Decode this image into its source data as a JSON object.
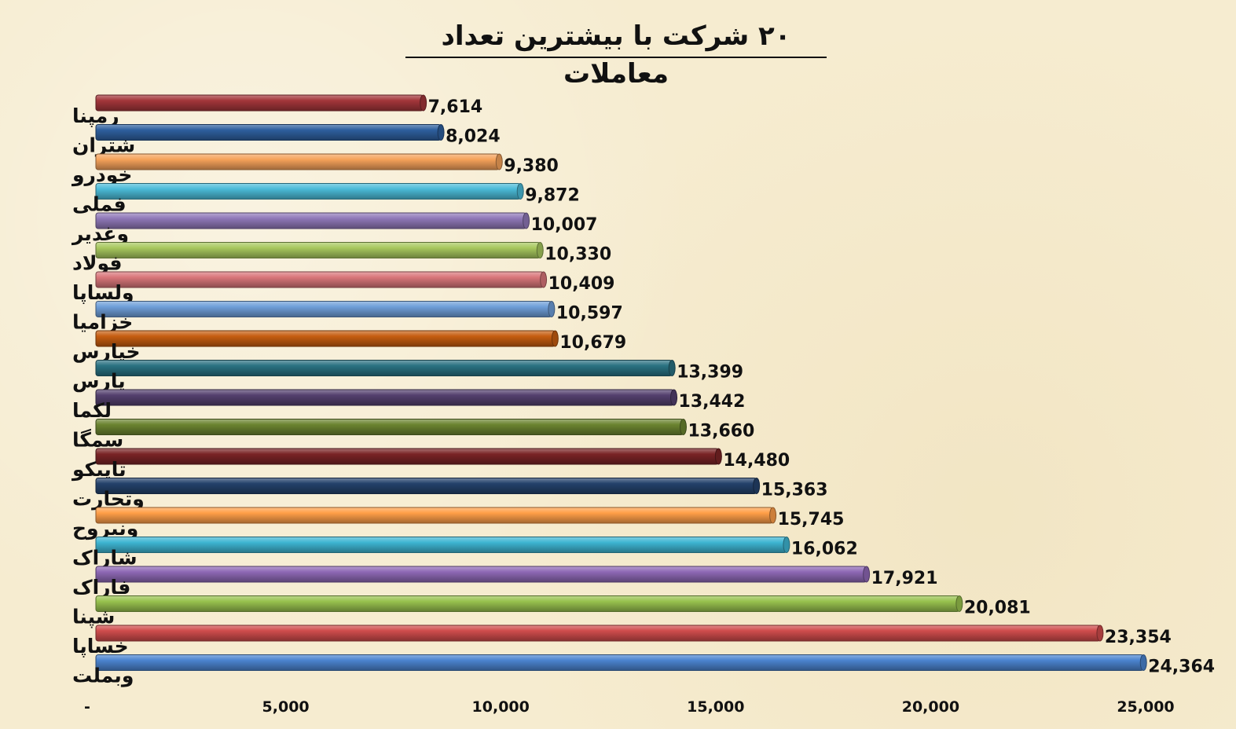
{
  "chart_data": {
    "type": "bar",
    "orientation": "horizontal",
    "title": "۲۰ شرکت با بیشترین تعداد معاملات",
    "categories": [
      "رمپنا",
      "شتران",
      "خودرو",
      "فملی",
      "وغدیر",
      "فولاد",
      "ولساپا",
      "خزامیا",
      "خپارس",
      "پارس",
      "لکما",
      "سمگا",
      "تاپیکو",
      "وتجارت",
      "ونیروح",
      "شاراک",
      "فاراک",
      "شپنا",
      "خساپا",
      "وبملت"
    ],
    "values": [
      7614,
      8024,
      9380,
      9872,
      10007,
      10330,
      10409,
      10597,
      10679,
      13399,
      13442,
      13660,
      14480,
      15363,
      15745,
      16062,
      17921,
      20081,
      23354,
      24364
    ],
    "value_labels": [
      "7,614",
      "8,024",
      "9,380",
      "9,872",
      "10,007",
      "10,330",
      "10,409",
      "10,597",
      "10,679",
      "13,399",
      "13,442",
      "13,660",
      "14,480",
      "15,363",
      "15,745",
      "16,062",
      "17,921",
      "20,081",
      "23,354",
      "24,364"
    ],
    "colors": [
      "#a3363a",
      "#2e5f9e",
      "#f5a25a",
      "#4bbbd8",
      "#9078b8",
      "#a8c85e",
      "#d9767a",
      "#6f9fd9",
      "#c65d10",
      "#2a7282",
      "#54406e",
      "#6b8430",
      "#7a2426",
      "#24426b",
      "#ff9f48",
      "#3eb5d2",
      "#8e68b5",
      "#98c24e",
      "#cf4c4c",
      "#4b84cf"
    ],
    "xlim": [
      0,
      25000
    ],
    "xticks": [
      0,
      5000,
      10000,
      15000,
      20000,
      25000
    ],
    "xtick_labels": [
      "-",
      "5,000",
      "10,000",
      "15,000",
      "20,000",
      "25,000"
    ],
    "grid": false,
    "legend": false
  }
}
